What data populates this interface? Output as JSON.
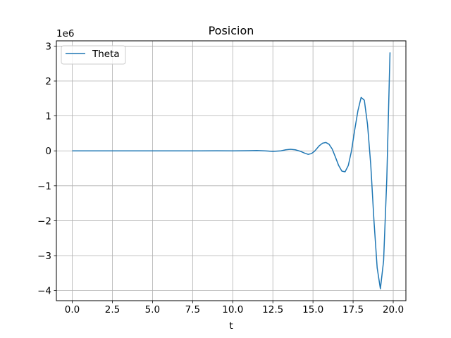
{
  "chart_data": {
    "type": "line",
    "title": "Posicion",
    "xlabel": "t",
    "ylabel": "",
    "y_offset_label": "1e6",
    "xlim": [
      -0.99,
      20.79
    ],
    "ylim": [
      -4.29,
      3.15
    ],
    "x_ticks": [
      0.0,
      2.5,
      5.0,
      7.5,
      10.0,
      12.5,
      15.0,
      17.5,
      20.0
    ],
    "x_tick_labels": [
      "0.0",
      "2.5",
      "5.0",
      "7.5",
      "10.0",
      "12.5",
      "15.0",
      "17.5",
      "20.0"
    ],
    "y_ticks": [
      -4,
      -3,
      -2,
      -1,
      0,
      1,
      2,
      3
    ],
    "y_tick_labels": [
      "−4",
      "−3",
      "−2",
      "−1",
      "0",
      "1",
      "2",
      "3"
    ],
    "grid": true,
    "legend_position": "upper-left",
    "series": [
      {
        "name": "Theta",
        "color": "#1f77b4",
        "x": [
          0,
          1,
          2,
          3,
          4,
          5,
          6,
          7,
          8,
          9,
          10,
          11,
          11.5,
          12,
          12.5,
          13,
          13.3,
          13.6,
          13.9,
          14.2,
          14.5,
          14.7,
          14.9,
          15.1,
          15.4,
          15.6,
          15.8,
          16.0,
          16.2,
          16.4,
          16.6,
          16.8,
          17.0,
          17.2,
          17.4,
          17.6,
          17.8,
          18.0,
          18.2,
          18.4,
          18.6,
          18.8,
          19.0,
          19.2,
          19.4,
          19.6,
          19.8
        ],
        "y": [
          0,
          0,
          0,
          0,
          0,
          0,
          0,
          0,
          0,
          0.001,
          0,
          0.005,
          0.01,
          0,
          -0.015,
          0.0,
          0.03,
          0.045,
          0.03,
          -0.01,
          -0.07,
          -0.1,
          -0.08,
          -0.01,
          0.15,
          0.22,
          0.24,
          0.19,
          0.05,
          -0.18,
          -0.42,
          -0.58,
          -0.6,
          -0.42,
          0.0,
          0.6,
          1.15,
          1.53,
          1.45,
          0.75,
          -0.4,
          -2.0,
          -3.35,
          -3.95,
          -3.15,
          -0.8,
          2.82
        ]
      }
    ]
  }
}
